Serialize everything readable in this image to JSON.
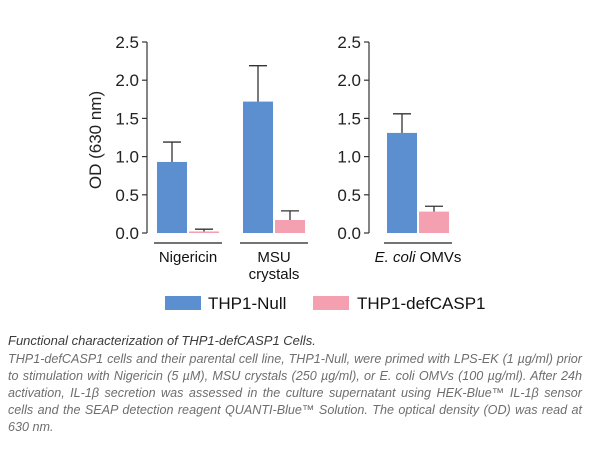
{
  "chart_data": {
    "type": "bar",
    "ylabel": "OD (630 nm)",
    "ylim": [
      0,
      2.5
    ],
    "yticks": [
      "0.0",
      "0.5",
      "1.0",
      "1.5",
      "2.0",
      "2.5"
    ],
    "series": [
      {
        "name": "THP1-Null",
        "color": "#5b8fd0"
      },
      {
        "name": "THP1-defCASP1",
        "color": "#f4a0b0"
      }
    ],
    "panels": [
      {
        "groups": [
          {
            "label_lines": [
              "Nigericin"
            ],
            "values": [
              0.93,
              0.02
            ],
            "errors": [
              0.26,
              0.03
            ]
          },
          {
            "label_lines": [
              "MSU",
              "crystals"
            ],
            "values": [
              1.72,
              0.17
            ],
            "errors": [
              0.47,
              0.12
            ]
          }
        ]
      },
      {
        "groups": [
          {
            "label_lines": [
              "E. coli OMVs"
            ],
            "italic_prefix": "E. coli",
            "plain_suffix": " OMVs",
            "values": [
              1.31,
              0.28
            ],
            "errors": [
              0.25,
              0.07
            ]
          }
        ]
      }
    ],
    "legend_position": "bottom"
  },
  "caption": {
    "title": "Functional characterization of THP1-defCASP1 Cells.",
    "body": "THP1-defCASP1 cells and their parental cell line, THP1-Null, were primed with LPS-EK (1 µg/ml) prior to stimulation with Nigericin (5 µM), MSU crystals (250 µg/ml), or E. coli OMVs (100 µg/ml). After 24h activation, IL-1β secretion was assessed in the culture supernatant using HEK-Blue™ IL-1β sensor cells and the SEAP detection reagent QUANTI-Blue™ Solution. The optical density (OD) was read at 630 nm."
  }
}
